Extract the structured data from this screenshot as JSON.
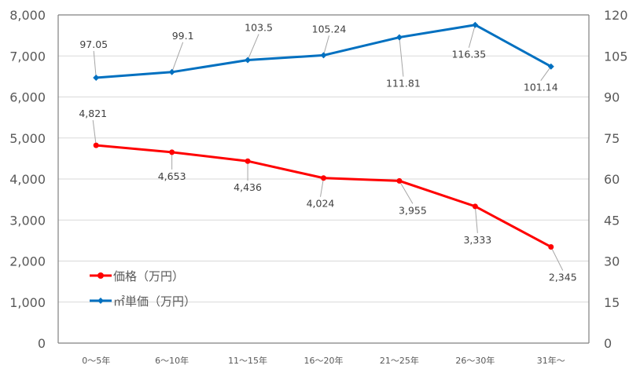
{
  "chart_data": {
    "type": "line",
    "title": "",
    "categories": [
      "0～5年",
      "6～10年",
      "11～15年",
      "16～20年",
      "21～25年",
      "26～30年",
      "31年～"
    ],
    "series": [
      {
        "name": "価格（万円）",
        "axis": "left",
        "color": "#ff0000",
        "marker": "circle",
        "values": [
          4821,
          4653,
          4436,
          4024,
          3955,
          3333,
          2345
        ],
        "labels": [
          "4,821",
          "4,653",
          "4,436",
          "4,024",
          "3,955",
          "3,333",
          "2,345"
        ]
      },
      {
        "name": "㎡単価（万円）",
        "axis": "right",
        "color": "#0070c0",
        "marker": "diamond",
        "values": [
          97.05,
          99.1,
          103.5,
          105.24,
          111.81,
          116.35,
          101.14
        ],
        "labels": [
          "97.05",
          "99.1",
          "103.5",
          "105.24",
          "111.81",
          "116.35",
          "101.14"
        ]
      }
    ],
    "y_left": {
      "range": [
        0,
        8000
      ],
      "ticks": [
        "0",
        "1,000",
        "2,000",
        "3,000",
        "4,000",
        "5,000",
        "6,000",
        "7,000",
        "8,000"
      ]
    },
    "y_right": {
      "range": [
        0,
        120
      ],
      "ticks": [
        "0",
        "15",
        "30",
        "45",
        "60",
        "75",
        "90",
        "105",
        "120"
      ]
    },
    "grid": true,
    "legend": "bottom-left inside"
  }
}
